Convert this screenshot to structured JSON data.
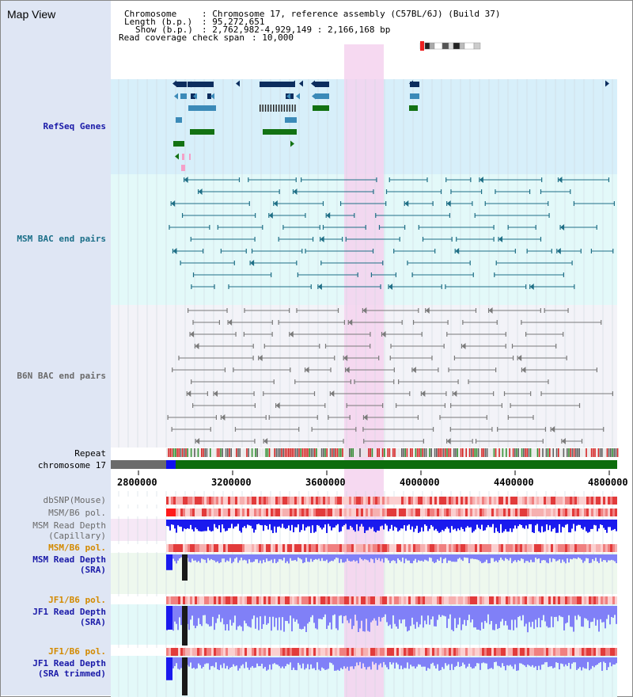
{
  "view_title": "Map View",
  "info": {
    "chromosome_key": "Chromosome",
    "chromosome_val": ": Chromosome 17, reference assembly (C57BL/6J) (Build 37)",
    "length_key": "Length (b.p.)",
    "length_val": ": 95,272,651",
    "show_key": "Show (b.p.)",
    "show_val": ": 2,762,982-4,929,149 : 2,166,168 bp",
    "coverage_key": "Read coverage check span",
    "coverage_val": ": 10,000"
  },
  "tracks": {
    "refseq": "RefSeq Genes",
    "msm_bac": "MSM BAC end pairs",
    "b6n_bac": "B6N BAC end pairs",
    "repeat": "Repeat",
    "chromosome": "chromosome 17",
    "dbsnp": "dbSNP(Mouse)",
    "msm_b6_pol_1": "MSM/B6 pol.",
    "msm_read_depth_cap_1": "MSM Read Depth",
    "msm_read_depth_cap_2": "(Capillary)",
    "msm_b6_pol_2": "MSM/B6 pol.",
    "msm_read_depth_sra_1": "MSM Read Depth",
    "msm_read_depth_sra_2": "(SRA)",
    "jf1_b6_pol_1": "JF1/B6 pol.",
    "jf1_read_depth_sra_1": "JF1 Read Depth",
    "jf1_read_depth_sra_2": "(SRA)",
    "jf1_b6_pol_2": "JF1/B6 pol.",
    "jf1_read_depth_trim_1": "JF1 Read Depth",
    "jf1_read_depth_trim_2": "(SRA trimmed)"
  },
  "axis_ticks": [
    "2800000",
    "3200000",
    "3600000",
    "4000000",
    "4400000",
    "4800000"
  ],
  "colors": {
    "refseq_bg": "#d7effa",
    "msm_bg": "#e3f9f9",
    "b6n_bg": "#f3f3f8",
    "highlight": "#f5d2ee",
    "gene_navy": "#0c2d5e",
    "gene_teal": "#3b8ab8",
    "gene_green": "#137213",
    "msm_pair": "#1f6f86",
    "b6n_pair": "#7a7a7a",
    "depth_blue": "#1a1aee",
    "depth_light": "#8080f7",
    "label_blue": "#1a1aa8",
    "label_teal": "#1a6e88",
    "label_gray": "#6a6a6a",
    "label_orange": "#d38a00"
  }
}
